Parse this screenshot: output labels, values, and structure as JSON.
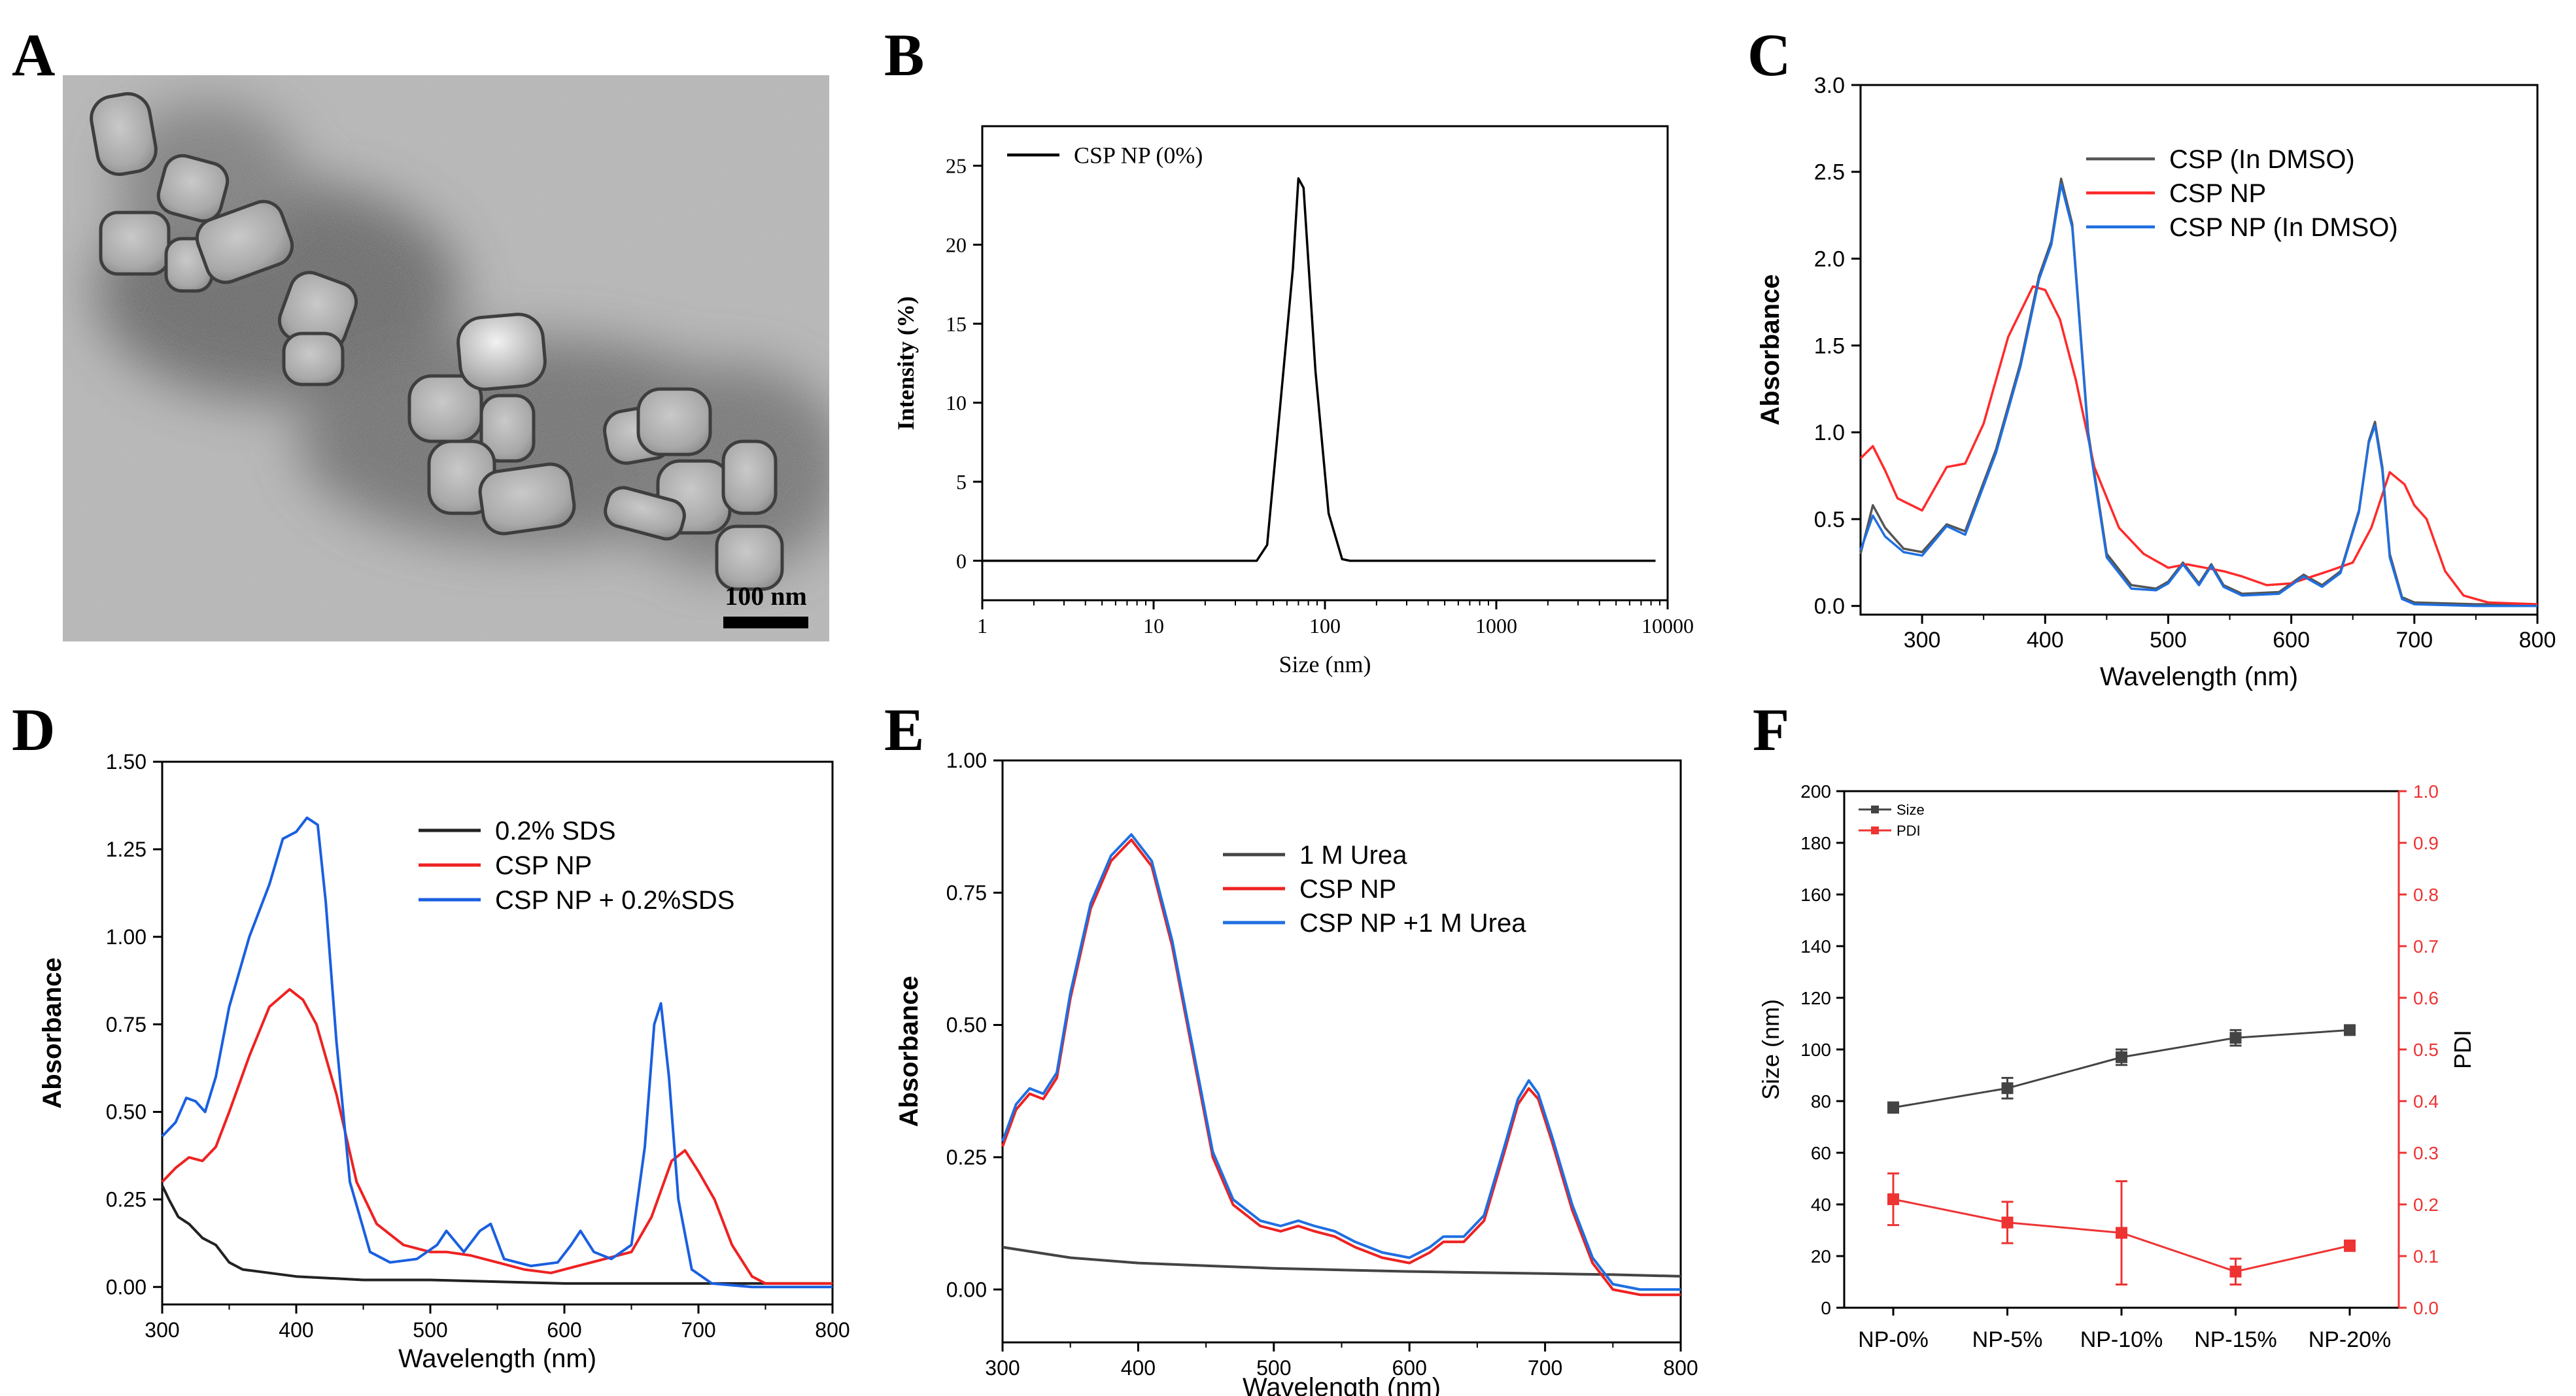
{
  "figure": {
    "panel_labels": [
      "A",
      "B",
      "C",
      "D",
      "E",
      "F"
    ],
    "tem": {
      "scale_bar_label": "100 nm"
    }
  },
  "chart_data": [
    {
      "panel": "B",
      "type": "line",
      "xscale": "log",
      "xlabel": "Size (nm)",
      "ylabel": "Intensity (%)",
      "xlim": [
        1,
        10000
      ],
      "ylim": [
        -2.5,
        27.5
      ],
      "xticks": [
        1,
        10,
        100,
        1000,
        10000
      ],
      "xtick_labels": [
        "1",
        "10",
        "100",
        "1000",
        "10000"
      ],
      "yticks": [
        0,
        5,
        10,
        15,
        20,
        25
      ],
      "ytick_labels": [
        "0",
        "5",
        "10",
        "15",
        "20",
        "25"
      ],
      "legend": [
        "CSP NP (0%)"
      ],
      "series": [
        {
          "name": "CSP NP (0%)",
          "color": "#000000",
          "x": [
            1,
            40,
            46,
            55,
            65,
            70,
            75,
            88,
            105,
            126,
            140,
            1000,
            8500
          ],
          "y": [
            0,
            0,
            1,
            10,
            18.5,
            24.2,
            23.6,
            12,
            3,
            0.1,
            0,
            0,
            0
          ]
        }
      ]
    },
    {
      "panel": "C",
      "type": "line",
      "xlabel": "Wavelength (nm)",
      "ylabel": "Absorbance",
      "xlim": [
        250,
        800
      ],
      "ylim": [
        -0.05,
        3.0
      ],
      "xticks": [
        300,
        400,
        500,
        600,
        700,
        800
      ],
      "xtick_labels": [
        "300",
        "400",
        "500",
        "600",
        "700",
        "800"
      ],
      "yticks": [
        0,
        0.5,
        1.0,
        1.5,
        2.0,
        2.5,
        3.0
      ],
      "ytick_labels": [
        "0.0",
        "0.5",
        "1.0",
        "1.5",
        "2.0",
        "2.5",
        "3.0"
      ],
      "legend": [
        "CSP (In DMSO)",
        "CSP NP",
        "CSP NP (In DMSO)"
      ],
      "series": [
        {
          "name": "CSP (In DMSO)",
          "color": "#555555",
          "x": [
            250,
            260,
            270,
            285,
            300,
            320,
            335,
            360,
            380,
            395,
            405,
            413,
            422,
            435,
            450,
            470,
            490,
            500,
            512,
            525,
            535,
            545,
            560,
            590,
            610,
            625,
            640,
            655,
            663,
            668,
            674,
            680,
            690,
            700,
            750,
            800
          ],
          "y": [
            0.3,
            0.58,
            0.45,
            0.33,
            0.31,
            0.47,
            0.43,
            0.9,
            1.4,
            1.9,
            2.1,
            2.46,
            2.2,
            1.0,
            0.3,
            0.12,
            0.1,
            0.14,
            0.25,
            0.13,
            0.24,
            0.12,
            0.07,
            0.08,
            0.18,
            0.12,
            0.2,
            0.55,
            0.95,
            1.06,
            0.8,
            0.3,
            0.05,
            0.02,
            0.01,
            0.01
          ]
        },
        {
          "name": "CSP NP",
          "color": "#ff2a2a",
          "x": [
            250,
            260,
            270,
            280,
            300,
            320,
            335,
            350,
            370,
            390,
            400,
            412,
            425,
            440,
            460,
            480,
            500,
            515,
            530,
            545,
            560,
            580,
            600,
            630,
            650,
            665,
            680,
            692,
            700,
            710,
            725,
            740,
            760,
            800
          ],
          "y": [
            0.85,
            0.92,
            0.78,
            0.62,
            0.55,
            0.8,
            0.82,
            1.05,
            1.55,
            1.84,
            1.82,
            1.65,
            1.3,
            0.8,
            0.45,
            0.3,
            0.22,
            0.24,
            0.22,
            0.2,
            0.17,
            0.12,
            0.13,
            0.2,
            0.25,
            0.45,
            0.77,
            0.7,
            0.58,
            0.5,
            0.2,
            0.06,
            0.02,
            0.01
          ]
        },
        {
          "name": "CSP NP (In DMSO)",
          "color": "#1f6fe0",
          "x": [
            250,
            260,
            270,
            285,
            300,
            320,
            335,
            360,
            380,
            395,
            405,
            413,
            422,
            435,
            450,
            470,
            490,
            500,
            512,
            525,
            535,
            545,
            560,
            590,
            610,
            625,
            640,
            655,
            663,
            668,
            674,
            680,
            690,
            700,
            750,
            800
          ],
          "y": [
            0.32,
            0.52,
            0.4,
            0.31,
            0.29,
            0.46,
            0.41,
            0.88,
            1.38,
            1.88,
            2.08,
            2.43,
            2.18,
            0.98,
            0.28,
            0.1,
            0.09,
            0.13,
            0.24,
            0.12,
            0.23,
            0.11,
            0.06,
            0.07,
            0.17,
            0.11,
            0.19,
            0.54,
            0.94,
            1.04,
            0.78,
            0.28,
            0.04,
            0.01,
            0.0,
            0.0
          ]
        }
      ]
    },
    {
      "panel": "D",
      "type": "line",
      "xlabel": "Wavelength (nm)",
      "ylabel": "Absorbance",
      "xlim": [
        300,
        800
      ],
      "ylim": [
        -0.05,
        1.5
      ],
      "xticks": [
        300,
        400,
        500,
        600,
        700,
        800
      ],
      "xtick_labels": [
        "300",
        "400",
        "500",
        "600",
        "700",
        "800"
      ],
      "yticks": [
        0,
        0.25,
        0.5,
        0.75,
        1.0,
        1.25,
        1.5
      ],
      "ytick_labels": [
        "0.00",
        "0.25",
        "0.50",
        "0.75",
        "1.00",
        "1.25",
        "1.50"
      ],
      "legend": [
        "0.2% SDS",
        "CSP NP",
        "CSP NP + 0.2%SDS"
      ],
      "series": [
        {
          "name": "0.2% SDS",
          "color": "#222222",
          "x": [
            300,
            305,
            312,
            320,
            330,
            340,
            350,
            360,
            380,
            400,
            450,
            500,
            600,
            700,
            800
          ],
          "y": [
            0.29,
            0.25,
            0.2,
            0.18,
            0.14,
            0.12,
            0.07,
            0.05,
            0.04,
            0.03,
            0.02,
            0.02,
            0.01,
            0.01,
            0.01
          ]
        },
        {
          "name": "CSP NP",
          "color": "#ee2222",
          "x": [
            300,
            310,
            320,
            330,
            340,
            350,
            365,
            380,
            395,
            405,
            415,
            430,
            445,
            460,
            480,
            500,
            512,
            530,
            550,
            570,
            590,
            610,
            630,
            650,
            665,
            680,
            690,
            700,
            712,
            725,
            740,
            750,
            760,
            800
          ],
          "y": [
            0.3,
            0.34,
            0.37,
            0.36,
            0.4,
            0.5,
            0.66,
            0.8,
            0.85,
            0.82,
            0.75,
            0.55,
            0.3,
            0.18,
            0.12,
            0.1,
            0.1,
            0.09,
            0.07,
            0.05,
            0.04,
            0.06,
            0.08,
            0.1,
            0.2,
            0.36,
            0.39,
            0.33,
            0.25,
            0.12,
            0.03,
            0.01,
            0.01,
            0.01
          ]
        },
        {
          "name": "CSP NP + 0.2%SDS",
          "color": "#1a5fe0",
          "x": [
            300,
            310,
            318,
            325,
            332,
            340,
            350,
            365,
            380,
            390,
            400,
            408,
            416,
            422,
            430,
            440,
            455,
            470,
            490,
            505,
            512,
            525,
            537,
            545,
            555,
            575,
            595,
            605,
            612,
            622,
            635,
            650,
            660,
            667,
            672,
            678,
            685,
            695,
            710,
            740,
            800
          ],
          "y": [
            0.43,
            0.47,
            0.54,
            0.53,
            0.5,
            0.6,
            0.8,
            1.0,
            1.15,
            1.28,
            1.3,
            1.34,
            1.32,
            1.1,
            0.7,
            0.3,
            0.1,
            0.07,
            0.08,
            0.12,
            0.16,
            0.1,
            0.16,
            0.18,
            0.08,
            0.06,
            0.07,
            0.12,
            0.16,
            0.1,
            0.08,
            0.12,
            0.4,
            0.75,
            0.81,
            0.6,
            0.25,
            0.05,
            0.01,
            0.0,
            0.0
          ]
        }
      ]
    },
    {
      "panel": "E",
      "type": "line",
      "xlabel": "Wavelength (nm)",
      "ylabel": "Absorbance",
      "xlim": [
        300,
        800
      ],
      "ylim": [
        -0.1,
        1.0
      ],
      "xticks": [
        300,
        400,
        500,
        600,
        700,
        800
      ],
      "xtick_labels": [
        "300",
        "400",
        "500",
        "600",
        "700",
        "800"
      ],
      "yticks": [
        0,
        0.25,
        0.5,
        0.75,
        1.0
      ],
      "ytick_labels": [
        "0.00",
        "0.25",
        "0.50",
        "0.75",
        "1.00"
      ],
      "legend": [
        "1 M Urea",
        "CSP NP",
        "CSP NP +1 M Urea"
      ],
      "series": [
        {
          "name": "1 M Urea",
          "color": "#444444",
          "x": [
            300,
            350,
            400,
            450,
            500,
            550,
            600,
            650,
            700,
            750,
            800
          ],
          "y": [
            0.08,
            0.06,
            0.05,
            0.045,
            0.04,
            0.037,
            0.034,
            0.032,
            0.03,
            0.028,
            0.025
          ]
        },
        {
          "name": "CSP NP",
          "color": "#ee2222",
          "x": [
            300,
            310,
            320,
            330,
            340,
            350,
            365,
            380,
            395,
            410,
            425,
            440,
            455,
            470,
            490,
            505,
            518,
            530,
            545,
            560,
            580,
            600,
            615,
            625,
            640,
            655,
            670,
            680,
            688,
            695,
            705,
            720,
            735,
            750,
            770,
            800
          ],
          "y": [
            0.27,
            0.34,
            0.37,
            0.36,
            0.4,
            0.55,
            0.72,
            0.81,
            0.85,
            0.8,
            0.65,
            0.45,
            0.25,
            0.16,
            0.12,
            0.11,
            0.12,
            0.11,
            0.1,
            0.08,
            0.06,
            0.05,
            0.07,
            0.09,
            0.09,
            0.13,
            0.26,
            0.35,
            0.38,
            0.36,
            0.28,
            0.15,
            0.05,
            0.0,
            -0.01,
            -0.01
          ]
        },
        {
          "name": "CSP NP +1 M Urea",
          "color": "#1f6fe0",
          "x": [
            300,
            310,
            320,
            330,
            340,
            350,
            365,
            380,
            395,
            410,
            425,
            440,
            455,
            470,
            490,
            505,
            518,
            530,
            545,
            560,
            580,
            600,
            615,
            625,
            640,
            655,
            670,
            680,
            688,
            695,
            705,
            720,
            735,
            750,
            770,
            800
          ],
          "y": [
            0.28,
            0.35,
            0.38,
            0.37,
            0.41,
            0.56,
            0.73,
            0.82,
            0.86,
            0.81,
            0.66,
            0.46,
            0.26,
            0.17,
            0.13,
            0.12,
            0.13,
            0.12,
            0.11,
            0.09,
            0.07,
            0.06,
            0.08,
            0.1,
            0.1,
            0.14,
            0.27,
            0.36,
            0.395,
            0.37,
            0.29,
            0.16,
            0.06,
            0.01,
            0.0,
            0.0
          ]
        }
      ]
    },
    {
      "panel": "F",
      "type": "line",
      "xlabel": "",
      "ylabel": "Size  (nm)",
      "ylabel_right": "PDI",
      "categories": [
        "NP-0%",
        "NP-5%",
        "NP-10%",
        "NP-15%",
        "NP-20%"
      ],
      "ylim": [
        0,
        200
      ],
      "ylim_right": [
        0,
        1.0
      ],
      "yticks": [
        0,
        20,
        40,
        60,
        80,
        100,
        120,
        140,
        160,
        180,
        200
      ],
      "ytick_labels": [
        "0",
        "20",
        "40",
        "60",
        "80",
        "100",
        "120",
        "140",
        "160",
        "180",
        "200"
      ],
      "yticks_right": [
        0,
        0.1,
        0.2,
        0.3,
        0.4,
        0.5,
        0.6,
        0.7,
        0.8,
        0.9,
        1.0
      ],
      "ytick_labels_right": [
        "0.0",
        "0.1",
        "0.2",
        "0.3",
        "0.4",
        "0.5",
        "0.6",
        "0.7",
        "0.8",
        "0.9",
        "1.0"
      ],
      "legend": [
        "Size",
        "PDI"
      ],
      "series": [
        {
          "name": "Size",
          "axis": "left",
          "color": "#444444",
          "values": [
            77.5,
            85,
            97,
            104.5,
            107.5
          ],
          "errors": [
            2,
            4,
            3,
            3,
            1.5
          ]
        },
        {
          "name": "PDI",
          "axis": "right",
          "color": "#ee3333",
          "values": [
            0.21,
            0.165,
            0.145,
            0.07,
            0.12
          ],
          "errors": [
            0.05,
            0.04,
            0.1,
            0.025,
            0.01
          ]
        }
      ]
    }
  ]
}
